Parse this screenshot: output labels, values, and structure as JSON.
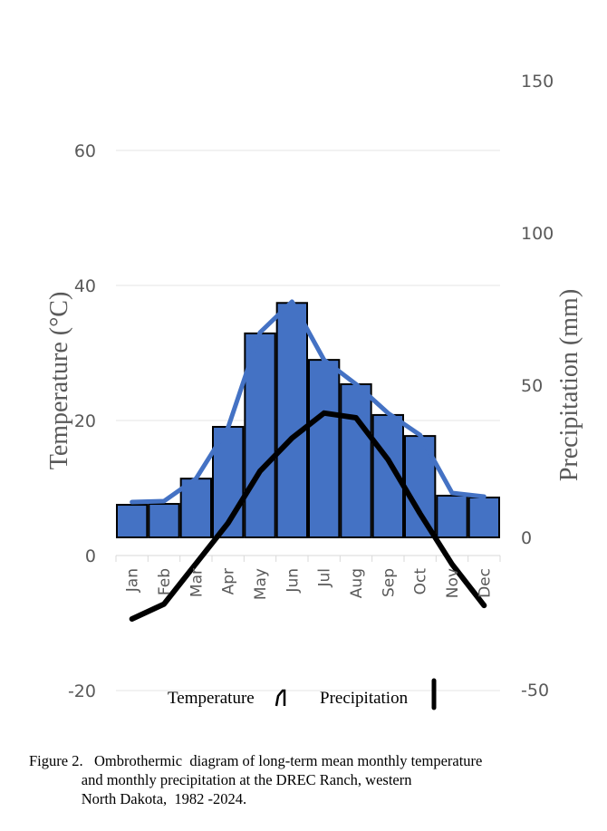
{
  "chart_data": {
    "type": "bar",
    "categories": [
      "Jan",
      "Feb",
      "Mar",
      "Apr",
      "May",
      "Jun",
      "Jul",
      "Aug",
      "Sep",
      "Oct",
      "Nov",
      "Dec"
    ],
    "left_axis": {
      "label": "Temperature (°C)",
      "ylim": [
        -20,
        60
      ],
      "ticks": [
        "60",
        "40",
        "20",
        "0",
        "-20"
      ]
    },
    "right_axis": {
      "label": "Precipitation (mm)",
      "ylim": [
        -50,
        150
      ],
      "ticks": [
        "150",
        "100",
        "50",
        "0",
        "-50"
      ]
    },
    "series": [
      {
        "kind": "bar",
        "axis": "right",
        "color": "#4472C4",
        "values": [
          10.7,
          11.0,
          19.3,
          36.3,
          67.0,
          77.0,
          58.3,
          50.3,
          40.2,
          33.3,
          13.7,
          13.1
        ]
      },
      {
        "kind": "line",
        "axis": "right",
        "color": "#4472C4",
        "values": [
          11.6,
          11.9,
          19.3,
          36.0,
          67.3,
          77.4,
          58.3,
          50.3,
          40.8,
          33.6,
          14.6,
          13.4
        ]
      },
      {
        "kind": "line",
        "axis": "left",
        "color": "#000000",
        "values": [
          -9.4,
          -7.2,
          -1.2,
          4.8,
          12.5,
          17.4,
          21.1,
          20.4,
          14.2,
          6.2,
          -1.3,
          -7.4
        ]
      }
    ],
    "legend": {
      "placement": "bottom",
      "entries": [
        "Temperature",
        "Precipitation"
      ]
    },
    "grid": true
  },
  "caption": {
    "line1": "Figure 2.   Ombrothermic  diagram of long-term mean monthly temperature",
    "line2": "              and monthly precipitation at the DREC Ranch, western",
    "line3": "              North Dakota,  1982 -2024."
  }
}
